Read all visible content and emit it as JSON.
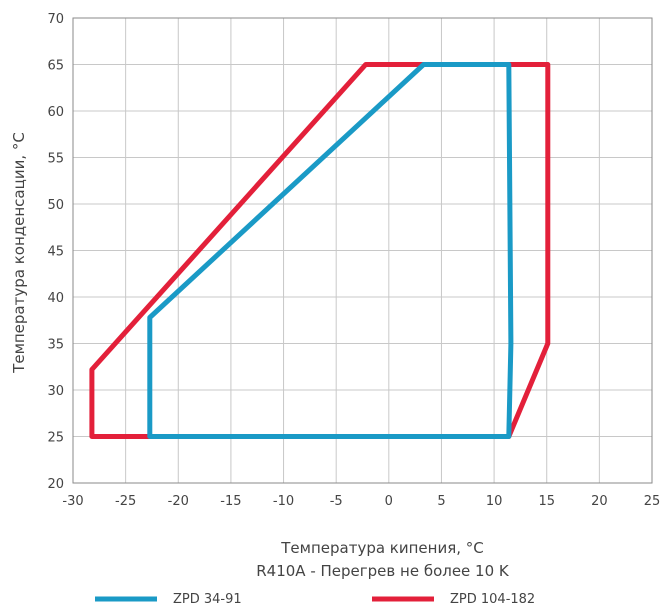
{
  "chart_data": {
    "type": "line",
    "xlabel": "Температура кипения, °C",
    "ylabel": "Температура конденсации, °C",
    "subtitle": "R410A - Перегрев не более 10 K",
    "xlim": [
      -30,
      25
    ],
    "ylim": [
      20,
      70
    ],
    "x_ticks": [
      -30,
      -25,
      -20,
      -15,
      -10,
      -5,
      0,
      5,
      10,
      15,
      20,
      25
    ],
    "y_ticks": [
      20,
      25,
      30,
      35,
      40,
      45,
      50,
      55,
      60,
      65,
      70
    ],
    "grid": true,
    "legend_position": "bottom",
    "series": [
      {
        "name": "ZPD 34-91",
        "color": "#1a9ac6",
        "points": [
          [
            -22.7,
            25
          ],
          [
            11.4,
            25
          ],
          [
            11.6,
            35
          ],
          [
            11.4,
            65
          ],
          [
            3.3,
            65
          ],
          [
            -22.7,
            37.8
          ],
          [
            -22.7,
            25
          ]
        ]
      },
      {
        "name": "ZPD 104-182",
        "color": "#e3203a",
        "points": [
          [
            -28.2,
            25
          ],
          [
            11.4,
            25
          ],
          [
            15.1,
            35
          ],
          [
            15.1,
            65
          ],
          [
            -2.2,
            65
          ],
          [
            -28.2,
            32.2
          ],
          [
            -28.2,
            25
          ]
        ]
      }
    ]
  }
}
